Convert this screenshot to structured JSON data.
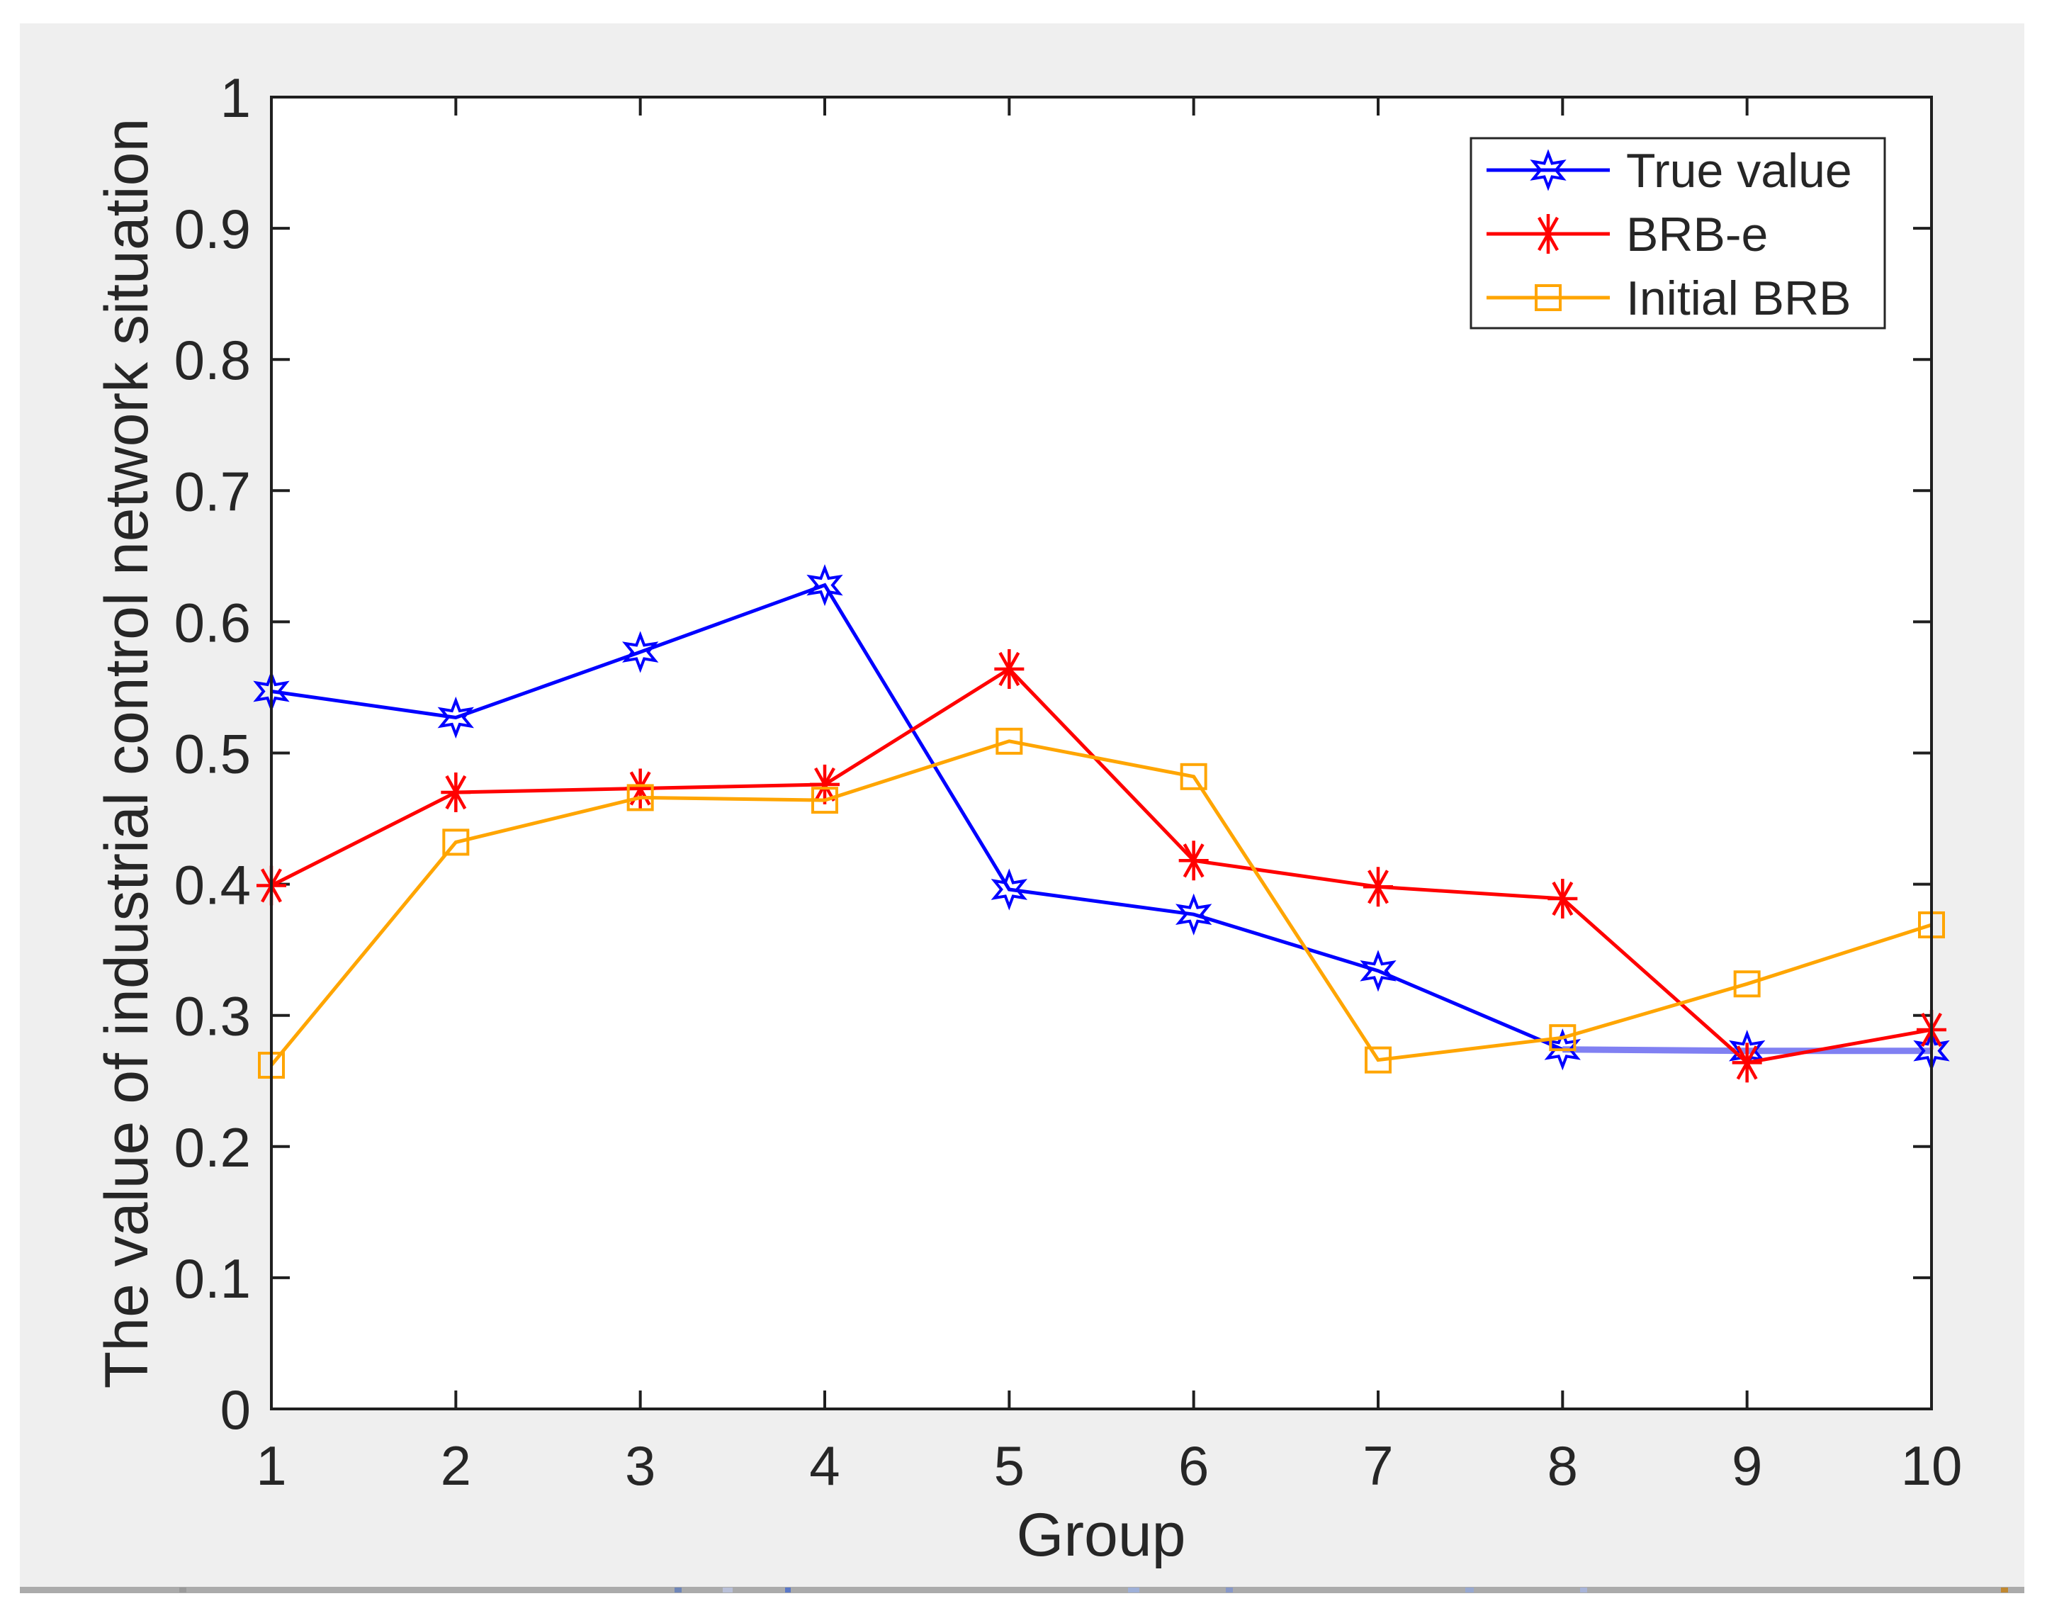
{
  "figure": {
    "bg_color": "#efefef",
    "plot_bg": "#ffffff",
    "axis_color": "#1f1f1f",
    "text_color": "#262626",
    "legend_bg": "#ffffff",
    "legend_border": "#262626",
    "window_strip_color": "#ababab"
  },
  "chart_data": {
    "type": "line",
    "title": "",
    "xlabel": "Group",
    "ylabel": "The value of industrial control network situation",
    "xlim": [
      1,
      10
    ],
    "ylim": [
      0,
      1
    ],
    "grid": false,
    "legend_position": "top-right",
    "x": [
      1,
      2,
      3,
      4,
      5,
      6,
      7,
      8,
      9,
      10
    ],
    "x_tick_labels": [
      "1",
      "2",
      "3",
      "4",
      "5",
      "6",
      "7",
      "8",
      "9",
      "10"
    ],
    "y_ticks": [
      0,
      0.1,
      0.2,
      0.3,
      0.4,
      0.5,
      0.6,
      0.7,
      0.8,
      0.9,
      1
    ],
    "y_tick_labels": [
      "0",
      "0.1",
      "0.2",
      "0.3",
      "0.4",
      "0.5",
      "0.6",
      "0.7",
      "0.8",
      "0.9",
      "1"
    ],
    "series": [
      {
        "name": "True value",
        "color": "#0000ff",
        "marker": "hexagram",
        "values": [
          0.547,
          0.527,
          0.577,
          0.628,
          0.396,
          0.377,
          0.334,
          0.274,
          0.273,
          0.273
        ]
      },
      {
        "name": "BRB-e",
        "color": "#ff0000",
        "marker": "asterisk",
        "values": [
          0.399,
          0.47,
          0.473,
          0.476,
          0.564,
          0.418,
          0.398,
          0.389,
          0.264,
          0.289
        ]
      },
      {
        "name": "Initial BRB",
        "color": "#ffa500",
        "marker": "square",
        "values": [
          0.262,
          0.432,
          0.466,
          0.464,
          0.509,
          0.482,
          0.266,
          0.283,
          0.324,
          0.369
        ]
      }
    ]
  }
}
